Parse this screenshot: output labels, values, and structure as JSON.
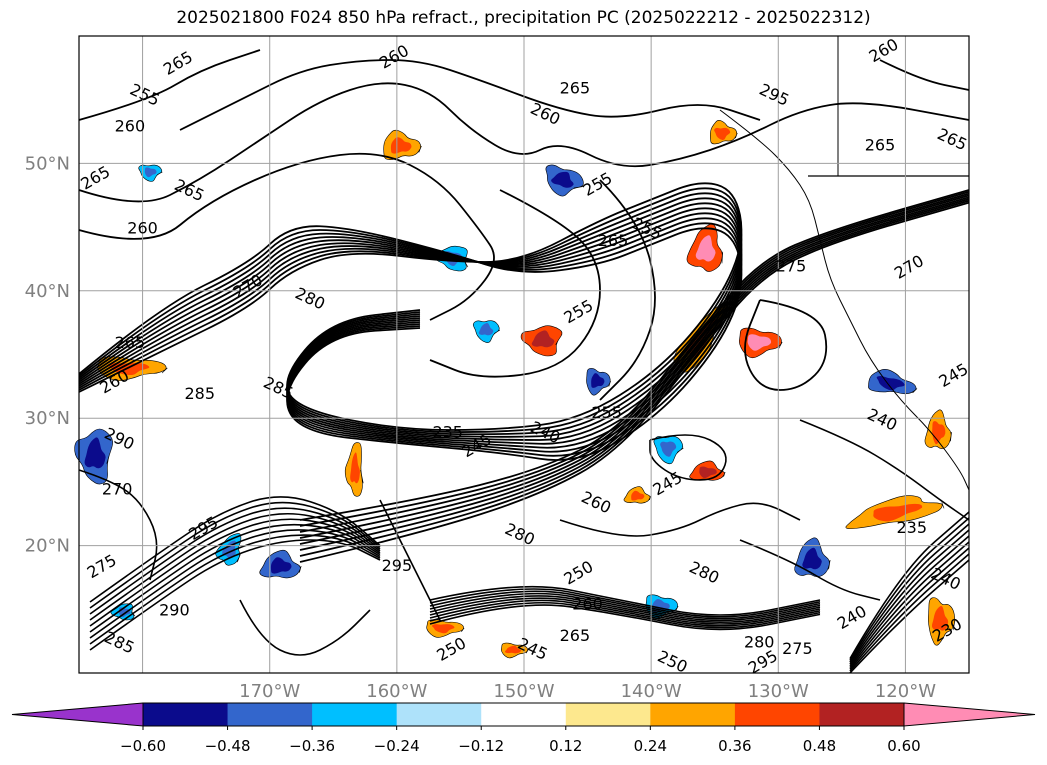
{
  "title": "2025021800 F024 850 hPa refract., precipitation PC (2025022212 - 2025022312)",
  "chart_data": {
    "type": "contour map",
    "colors": {
      "tick_label": "#808080",
      "grid": "#a0a0a0",
      "contour": "#000000"
    },
    "longitude_ticks": [
      "170°W",
      "160°W",
      "150°W",
      "140°W",
      "130°W",
      "120°W"
    ],
    "latitude_ticks": [
      "50°N",
      "40°N",
      "30°N",
      "20°N"
    ],
    "contour_labels": [
      {
        "text": "265",
        "lon": -177.0,
        "lat": 57.5
      },
      {
        "text": "255",
        "lon": -180.0,
        "lat": 55.0
      },
      {
        "text": "260",
        "lon": -181.0,
        "lat": 52.5
      },
      {
        "text": "260",
        "lon": -160.0,
        "lat": 58.0
      },
      {
        "text": "260",
        "lon": -148.5,
        "lat": 53.5
      },
      {
        "text": "265",
        "lon": -146.0,
        "lat": 55.5
      },
      {
        "text": "265",
        "lon": -183.5,
        "lat": 48.5
      },
      {
        "text": "265",
        "lon": -176.5,
        "lat": 47.5
      },
      {
        "text": "260",
        "lon": -180.0,
        "lat": 44.5
      },
      {
        "text": "255",
        "lon": -144.0,
        "lat": 48.0
      },
      {
        "text": "255",
        "lon": -140.5,
        "lat": 44.5
      },
      {
        "text": "265",
        "lon": -143.0,
        "lat": 43.5
      },
      {
        "text": "270",
        "lon": -171.5,
        "lat": 40.0
      },
      {
        "text": "280",
        "lon": -167.0,
        "lat": 39.0
      },
      {
        "text": "265",
        "lon": -181.0,
        "lat": 35.5
      },
      {
        "text": "255",
        "lon": -145.5,
        "lat": 38.0
      },
      {
        "text": "285",
        "lon": -169.5,
        "lat": 32.0
      },
      {
        "text": "285",
        "lon": -175.5,
        "lat": 31.5
      },
      {
        "text": "260",
        "lon": -182.0,
        "lat": 32.5
      },
      {
        "text": "290",
        "lon": -182.0,
        "lat": 28.0
      },
      {
        "text": "235",
        "lon": -156.0,
        "lat": 28.5
      },
      {
        "text": "245",
        "lon": -153.5,
        "lat": 27.5
      },
      {
        "text": "240",
        "lon": -148.5,
        "lat": 28.5
      },
      {
        "text": "255",
        "lon": -143.5,
        "lat": 30.0
      },
      {
        "text": "245",
        "lon": -138.5,
        "lat": 24.5
      },
      {
        "text": "260",
        "lon": -144.5,
        "lat": 23.0
      },
      {
        "text": "270",
        "lon": -182.0,
        "lat": 24.0
      },
      {
        "text": "295",
        "lon": -175.0,
        "lat": 21.0
      },
      {
        "text": "280",
        "lon": -150.5,
        "lat": 20.5
      },
      {
        "text": "275",
        "lon": -129.0,
        "lat": 41.5
      },
      {
        "text": "270",
        "lon": -119.5,
        "lat": 41.5
      },
      {
        "text": "240",
        "lon": -122.0,
        "lat": 29.5
      },
      {
        "text": "235",
        "lon": -119.5,
        "lat": 21.0
      },
      {
        "text": "245",
        "lon": -116.0,
        "lat": 33.0
      },
      {
        "text": "265",
        "lon": -116.5,
        "lat": 51.5
      },
      {
        "text": "265",
        "lon": -122.0,
        "lat": 51.0
      },
      {
        "text": "260",
        "lon": -121.5,
        "lat": 58.5
      },
      {
        "text": "295",
        "lon": -130.5,
        "lat": 55.0
      },
      {
        "text": "295",
        "lon": -160.0,
        "lat": 18.0
      },
      {
        "text": "250",
        "lon": -145.5,
        "lat": 17.5
      },
      {
        "text": "280",
        "lon": -136.0,
        "lat": 17.5
      },
      {
        "text": "260",
        "lon": -145.0,
        "lat": 15.0
      },
      {
        "text": "250",
        "lon": -155.5,
        "lat": 11.5
      },
      {
        "text": "245",
        "lon": -149.5,
        "lat": 11.5
      },
      {
        "text": "265",
        "lon": -146.0,
        "lat": 12.5
      },
      {
        "text": "240",
        "lon": -124.0,
        "lat": 14.0
      },
      {
        "text": "240",
        "lon": -117.0,
        "lat": 17.0
      },
      {
        "text": "280",
        "lon": -131.5,
        "lat": 12.0
      },
      {
        "text": "295",
        "lon": -131.0,
        "lat": 10.5
      },
      {
        "text": "250",
        "lon": -138.5,
        "lat": 10.5
      },
      {
        "text": "275",
        "lon": -128.5,
        "lat": 11.5
      },
      {
        "text": "230",
        "lon": -116.5,
        "lat": 13.0
      },
      {
        "text": "285",
        "lon": -182.0,
        "lat": 12.0
      },
      {
        "text": "290",
        "lon": -177.5,
        "lat": 14.5
      },
      {
        "text": "275",
        "lon": -183.0,
        "lat": 18.0
      }
    ],
    "colorbar": {
      "ticks": [
        "−0.60",
        "−0.48",
        "−0.36",
        "−0.24",
        "−0.12",
        "0.12",
        "0.24",
        "0.36",
        "0.48",
        "0.60"
      ],
      "colors": [
        "#9933cc",
        "#0b0b8c",
        "#3366cc",
        "#00bfff",
        "#aee2fa",
        "#ffffff",
        "#fde88e",
        "#ffa500",
        "#ff4500",
        "#b22222",
        "#ff8cb4",
        "#ff8cb4"
      ],
      "extend": "both"
    }
  }
}
